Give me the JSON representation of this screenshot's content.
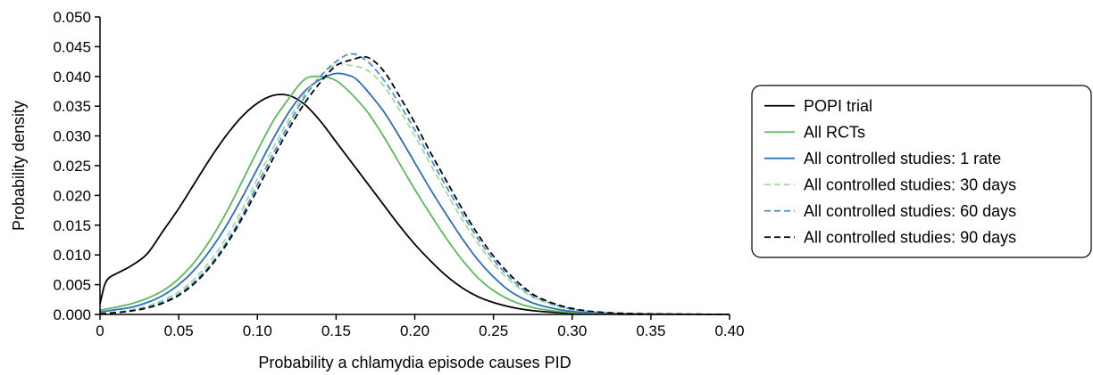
{
  "chart_data": {
    "type": "line",
    "xlabel": "Probability a chlamydia episode causes PID",
    "ylabel": "Probability density",
    "xlim": [
      0,
      0.4
    ],
    "ylim": [
      0,
      0.05
    ],
    "xticks": [
      0,
      0.05,
      0.1,
      0.15,
      0.2,
      0.25,
      0.3,
      0.35,
      0.4
    ],
    "xtick_labels": [
      "0",
      "0.05",
      "0.10",
      "0.15",
      "0.20",
      "0.25",
      "0.30",
      "0.35",
      "0.40"
    ],
    "yticks": [
      0,
      0.005,
      0.01,
      0.015,
      0.02,
      0.025,
      0.03,
      0.035,
      0.04,
      0.045,
      0.05
    ],
    "ytick_labels": [
      "0.000",
      "0.005",
      "0.010",
      "0.015",
      "0.020",
      "0.025",
      "0.030",
      "0.035",
      "0.040",
      "0.045",
      "0.050"
    ],
    "grid": false,
    "legend_position": "right",
    "series": [
      {
        "name": "POPI trial",
        "color": "#000000",
        "dash": "solid",
        "x": [
          0,
          0.003,
          0.006,
          0.01,
          0.02,
          0.03,
          0.04,
          0.05,
          0.06,
          0.07,
          0.08,
          0.09,
          0.1,
          0.11,
          0.12,
          0.13,
          0.14,
          0.15,
          0.16,
          0.17,
          0.18,
          0.19,
          0.2,
          0.21,
          0.22,
          0.23,
          0.24,
          0.25,
          0.26,
          0.27,
          0.28,
          0.3,
          0.33,
          0.4
        ],
        "y": [
          0.0018,
          0.005,
          0.0062,
          0.0068,
          0.0082,
          0.0102,
          0.014,
          0.0178,
          0.022,
          0.0262,
          0.03,
          0.0332,
          0.0355,
          0.0368,
          0.0368,
          0.0353,
          0.0325,
          0.029,
          0.0255,
          0.022,
          0.0185,
          0.015,
          0.0118,
          0.009,
          0.0065,
          0.0045,
          0.003,
          0.002,
          0.0013,
          0.0008,
          0.0005,
          0.0002,
          5e-05,
          0.0
        ]
      },
      {
        "name": "All RCTs",
        "color": "#5cb85c",
        "dash": "solid",
        "x": [
          0,
          0.01,
          0.02,
          0.03,
          0.04,
          0.05,
          0.06,
          0.07,
          0.08,
          0.09,
          0.1,
          0.11,
          0.12,
          0.13,
          0.14,
          0.15,
          0.16,
          0.17,
          0.18,
          0.19,
          0.2,
          0.21,
          0.22,
          0.23,
          0.24,
          0.25,
          0.26,
          0.27,
          0.28,
          0.3,
          0.33,
          0.4
        ],
        "y": [
          0.0007,
          0.0012,
          0.0018,
          0.0027,
          0.004,
          0.006,
          0.0088,
          0.0125,
          0.017,
          0.0222,
          0.0275,
          0.0325,
          0.0363,
          0.0395,
          0.04,
          0.0393,
          0.037,
          0.034,
          0.03,
          0.0255,
          0.021,
          0.0168,
          0.0128,
          0.0092,
          0.0062,
          0.004,
          0.0025,
          0.0015,
          0.0009,
          0.0003,
          8e-05,
          0.0
        ]
      },
      {
        "name": "All controlled studies: 1 rate",
        "color": "#2a6ebb",
        "dash": "solid",
        "x": [
          0,
          0.01,
          0.02,
          0.03,
          0.04,
          0.05,
          0.06,
          0.07,
          0.08,
          0.09,
          0.1,
          0.11,
          0.12,
          0.13,
          0.14,
          0.15,
          0.16,
          0.165,
          0.17,
          0.18,
          0.19,
          0.2,
          0.21,
          0.22,
          0.23,
          0.24,
          0.25,
          0.26,
          0.27,
          0.28,
          0.3,
          0.33,
          0.4
        ],
        "y": [
          0.0004,
          0.0008,
          0.0012,
          0.002,
          0.0032,
          0.005,
          0.0075,
          0.0108,
          0.0148,
          0.0195,
          0.0245,
          0.0295,
          0.034,
          0.0375,
          0.0395,
          0.0405,
          0.04,
          0.039,
          0.0375,
          0.0342,
          0.03,
          0.0255,
          0.021,
          0.0168,
          0.0128,
          0.0092,
          0.0063,
          0.004,
          0.0025,
          0.0015,
          0.0005,
          0.0001,
          0.0
        ]
      },
      {
        "name": "All controlled studies: 30 days",
        "color": "#a8d8a0",
        "dash": "dashed",
        "x": [
          0,
          0.01,
          0.02,
          0.03,
          0.04,
          0.05,
          0.06,
          0.07,
          0.08,
          0.09,
          0.1,
          0.11,
          0.12,
          0.13,
          0.14,
          0.15,
          0.16,
          0.17,
          0.18,
          0.19,
          0.2,
          0.21,
          0.22,
          0.23,
          0.24,
          0.25,
          0.26,
          0.27,
          0.28,
          0.3,
          0.33,
          0.4
        ],
        "y": [
          0.0002,
          0.0004,
          0.0008,
          0.0014,
          0.0024,
          0.0038,
          0.006,
          0.009,
          0.0128,
          0.0175,
          0.0228,
          0.028,
          0.0328,
          0.037,
          0.04,
          0.042,
          0.0418,
          0.041,
          0.0385,
          0.0345,
          0.03,
          0.0252,
          0.0205,
          0.016,
          0.012,
          0.0085,
          0.0058,
          0.0037,
          0.0023,
          0.0008,
          0.00015,
          0.0
        ]
      },
      {
        "name": "All controlled studies: 60 days",
        "color": "#4a90d0",
        "dash": "dashed",
        "x": [
          0,
          0.01,
          0.02,
          0.03,
          0.04,
          0.05,
          0.06,
          0.07,
          0.08,
          0.09,
          0.1,
          0.11,
          0.12,
          0.13,
          0.14,
          0.15,
          0.16,
          0.17,
          0.18,
          0.19,
          0.2,
          0.21,
          0.22,
          0.23,
          0.24,
          0.25,
          0.26,
          0.27,
          0.28,
          0.3,
          0.33,
          0.4
        ],
        "y": [
          0.0001,
          0.0003,
          0.0006,
          0.0012,
          0.0021,
          0.0034,
          0.0055,
          0.0083,
          0.012,
          0.0165,
          0.0218,
          0.027,
          0.032,
          0.0365,
          0.04,
          0.0425,
          0.0438,
          0.0425,
          0.0395,
          0.0355,
          0.031,
          0.0262,
          0.0215,
          0.017,
          0.0128,
          0.0092,
          0.0063,
          0.004,
          0.0025,
          0.0009,
          0.00018,
          0.0
        ]
      },
      {
        "name": "All controlled studies: 90 days",
        "color": "#000000",
        "dash": "dashed",
        "x": [
          0,
          0.01,
          0.02,
          0.03,
          0.04,
          0.05,
          0.06,
          0.07,
          0.08,
          0.09,
          0.1,
          0.11,
          0.12,
          0.13,
          0.14,
          0.15,
          0.16,
          0.17,
          0.18,
          0.19,
          0.2,
          0.21,
          0.22,
          0.23,
          0.24,
          0.25,
          0.26,
          0.27,
          0.28,
          0.3,
          0.33,
          0.4
        ],
        "y": [
          0.0001,
          0.0003,
          0.0006,
          0.0011,
          0.0019,
          0.0032,
          0.0052,
          0.008,
          0.0116,
          0.016,
          0.021,
          0.0262,
          0.0312,
          0.0355,
          0.039,
          0.0418,
          0.0428,
          0.0432,
          0.041,
          0.0368,
          0.0322,
          0.0272,
          0.0225,
          0.0178,
          0.0135,
          0.0098,
          0.0068,
          0.0044,
          0.0027,
          0.001,
          0.0002,
          0.0
        ]
      }
    ]
  }
}
